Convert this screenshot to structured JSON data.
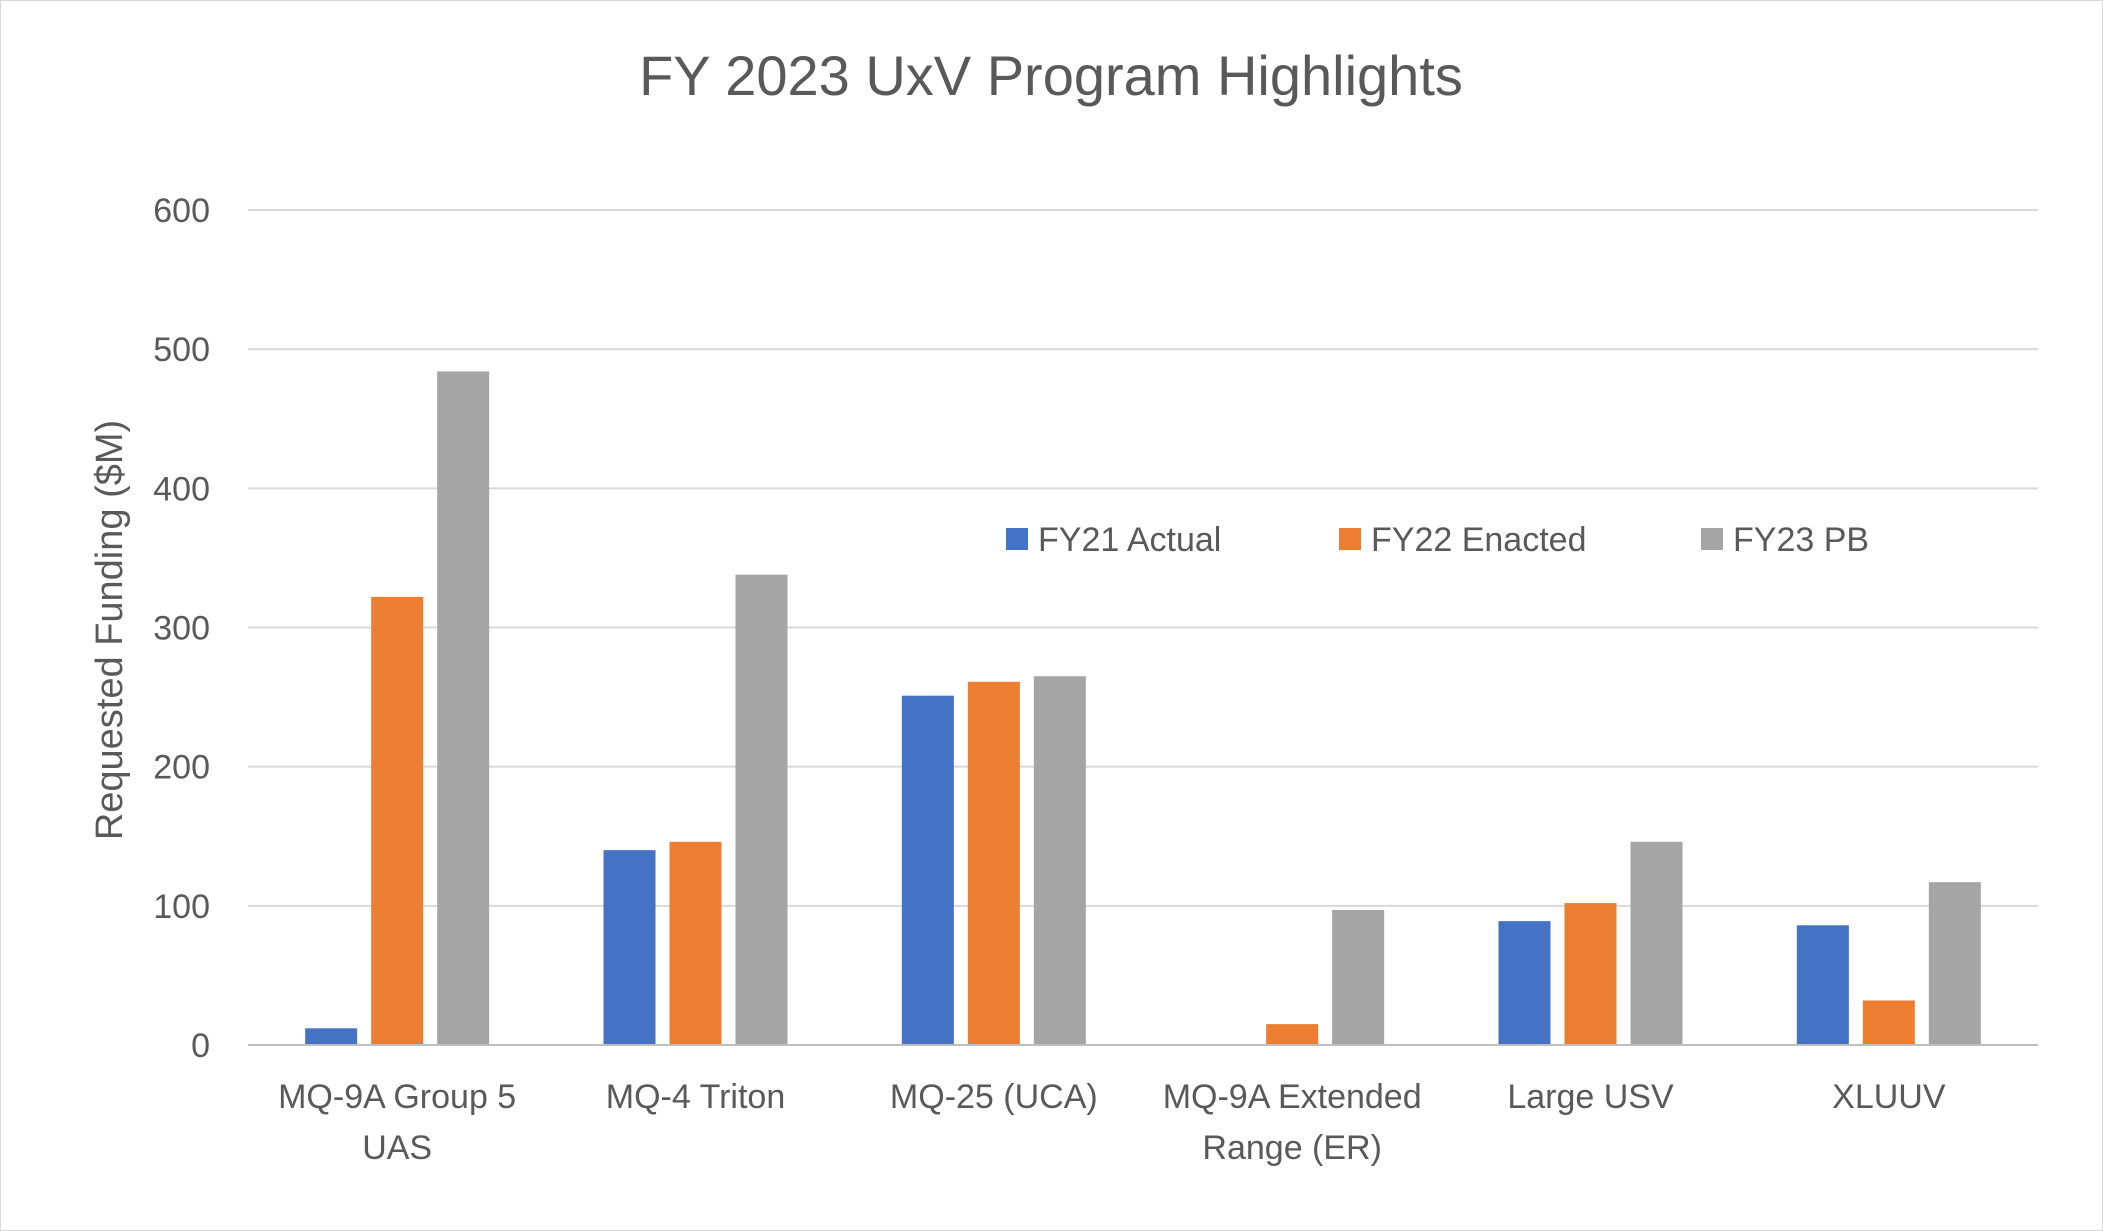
{
  "chart_data": {
    "type": "bar",
    "title": "FY 2023 UxV Program Highlights",
    "xlabel": "",
    "ylabel": "Requested Funding ($M)",
    "ylim": [
      0,
      600
    ],
    "yticks": [
      0,
      100,
      200,
      300,
      400,
      500,
      600
    ],
    "grid": true,
    "legend_position": "center-right",
    "categories": [
      [
        "MQ-9A Group 5",
        "UAS"
      ],
      [
        "MQ-4 Triton"
      ],
      [
        "MQ-25 (UCA)"
      ],
      [
        "MQ-9A Extended",
        "Range (ER)"
      ],
      [
        "Large USV"
      ],
      [
        "XLUUV"
      ]
    ],
    "series": [
      {
        "name": "FY21 Actual",
        "color": "#4472C4",
        "values": [
          12,
          140,
          251,
          0,
          89,
          86
        ]
      },
      {
        "name": "FY22 Enacted",
        "color": "#ED7D31",
        "values": [
          322,
          146,
          261,
          15,
          102,
          32
        ]
      },
      {
        "name": "FY23 PB",
        "color": "#A5A5A5",
        "values": [
          484,
          338,
          265,
          97,
          146,
          117
        ]
      }
    ]
  }
}
